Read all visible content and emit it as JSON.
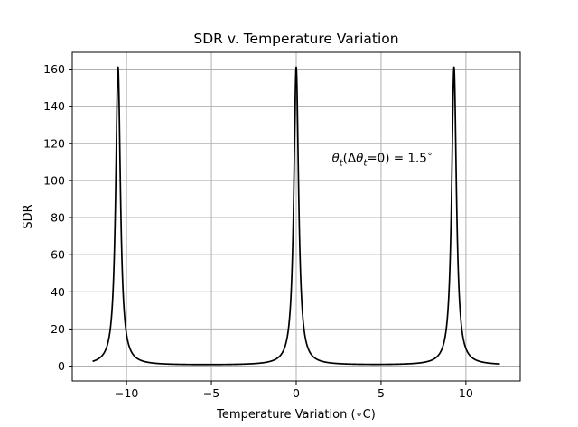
{
  "chart_data": {
    "type": "line",
    "title": "SDR v. Temperature Variation",
    "xlabel": "Temperature Variation (∘C)",
    "ylabel": "SDR",
    "xlim": [
      -13.2,
      13.2
    ],
    "ylim": [
      -8,
      169
    ],
    "x_ticks": [
      -10,
      -5,
      0,
      5,
      10
    ],
    "y_ticks": [
      0,
      20,
      40,
      60,
      80,
      100,
      120,
      140,
      160
    ],
    "grid": true,
    "legend": "none",
    "line_color": "#000000",
    "grid_color": "#b0b0b0",
    "x_range": [
      -12,
      12
    ],
    "peaks": [
      {
        "x": -10.5,
        "y": 161
      },
      {
        "x": 0.0,
        "y": 161
      },
      {
        "x": 9.3,
        "y": 161
      }
    ],
    "baseline": 0.5,
    "annotation": {
      "text": "θt(Δθt=0) = 1.5∘",
      "x": 2.1,
      "y": 110
    },
    "values_at_edges": {
      "x_min": -12,
      "y_at_x_min": 2.5,
      "x_max": 12,
      "y_at_x_max": 0.5
    }
  }
}
